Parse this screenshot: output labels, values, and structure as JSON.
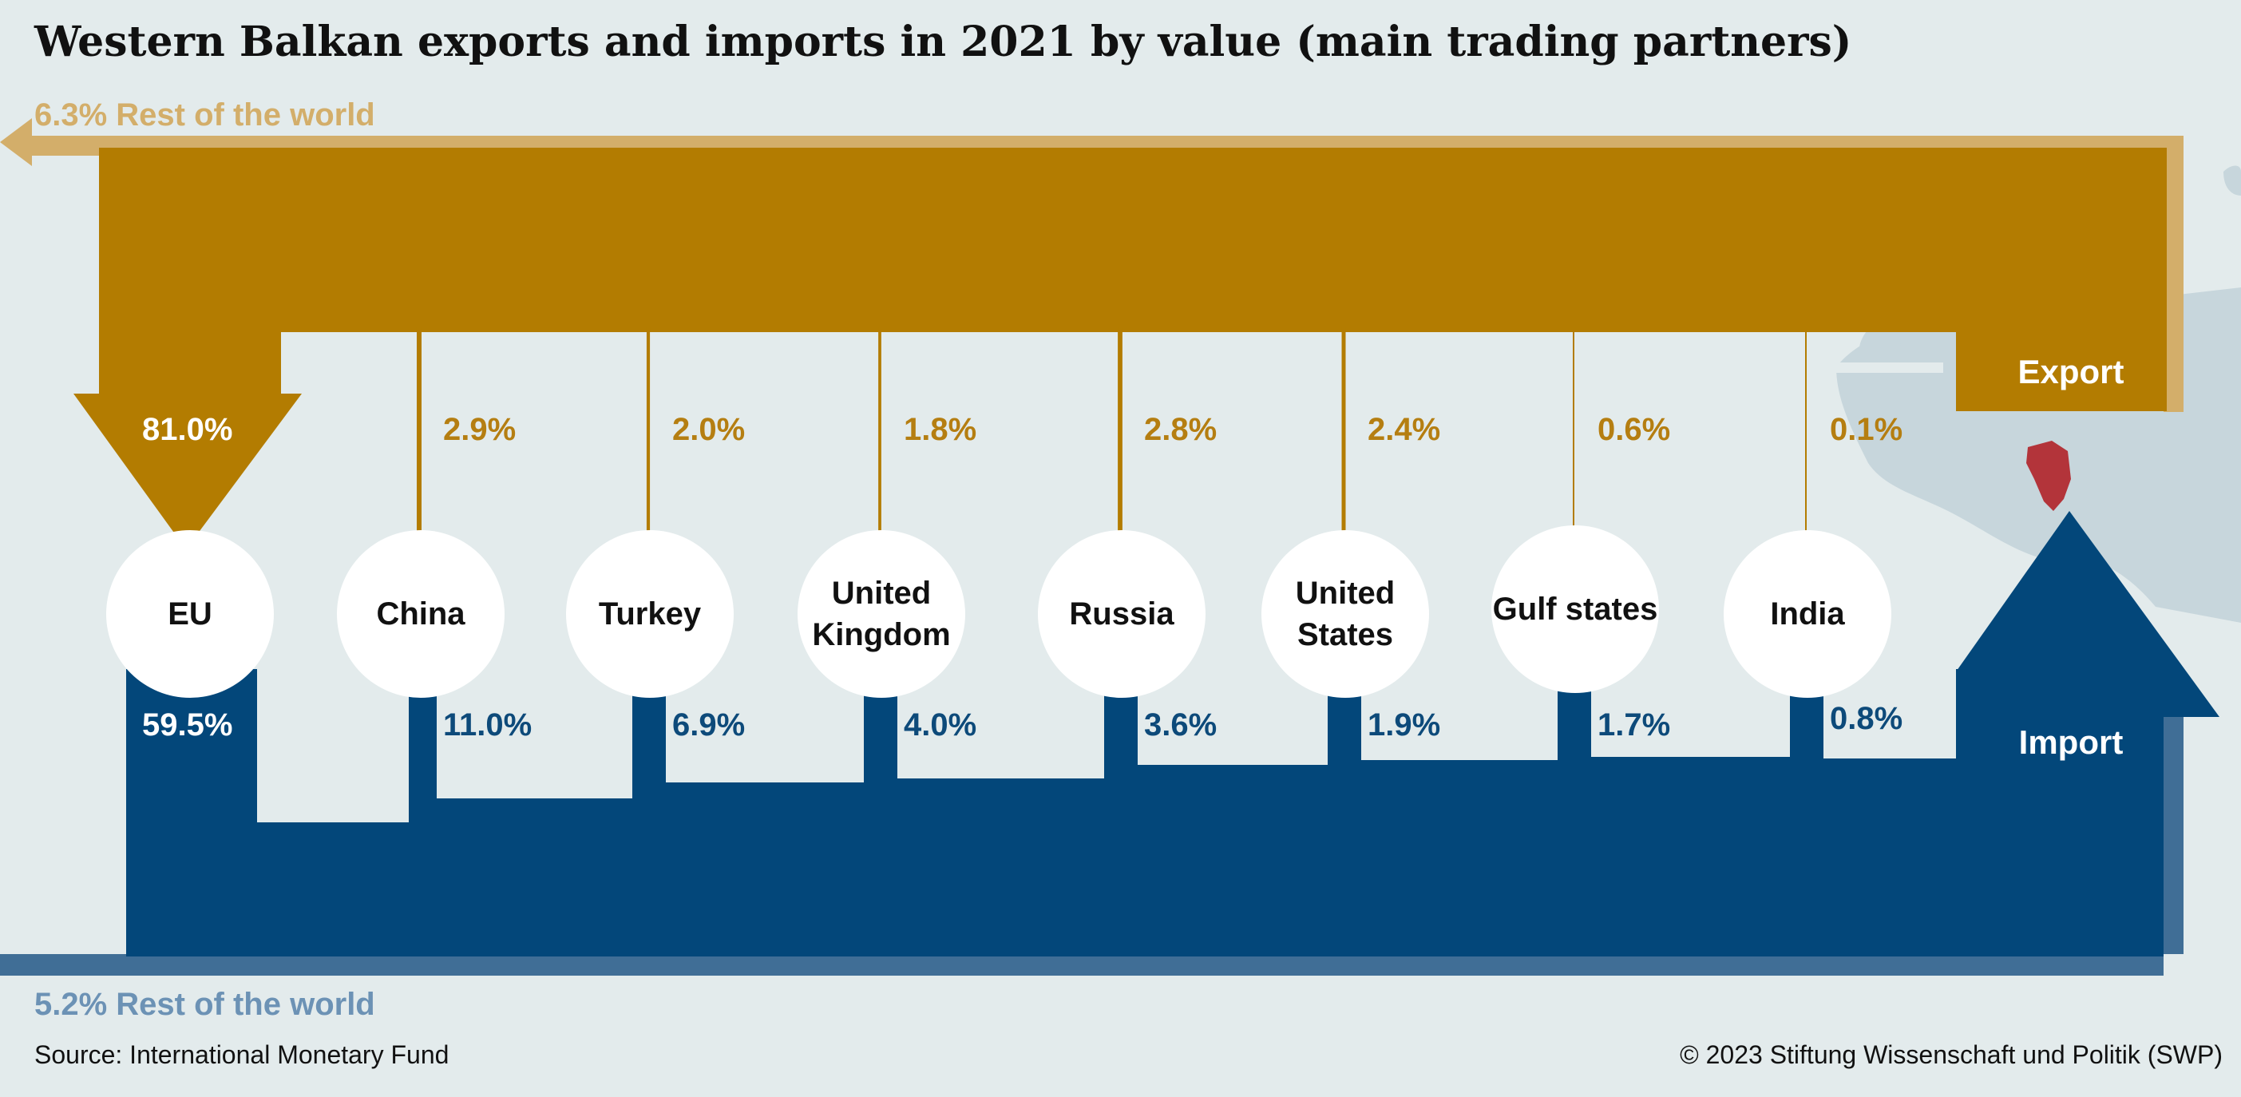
{
  "title": "Western Balkan exports and imports in 2021 by value (main trading partners)",
  "export_label": "Export",
  "import_label": "Import",
  "rest_of_world_export": "6.3% Rest of the world",
  "rest_of_world_import": "5.2% Rest of the world",
  "source": "Source: International Monetary Fund",
  "copyright": "© 2023 Stiftung Wissenschaft und Politik (SWP)",
  "colors": {
    "export": "#b37c01",
    "export_light": "#d3ae6a",
    "import": "#03477a",
    "import_light": "#406e96",
    "background": "#e3ebec",
    "map": "#c7d6dc",
    "western_balkans": "#b3343a"
  },
  "partners": [
    {
      "name": "EU",
      "export": "81.0%",
      "import": "59.5%"
    },
    {
      "name": "China",
      "export": "2.9%",
      "import": "11.0%"
    },
    {
      "name": "Turkey",
      "export": "2.0%",
      "import": "6.9%"
    },
    {
      "name": "United\nKingdom",
      "export": "1.8%",
      "import": "4.0%"
    },
    {
      "name": "Russia",
      "export": "2.8%",
      "import": "3.6%"
    },
    {
      "name": "United\nStates",
      "export": "2.4%",
      "import": "1.9%"
    },
    {
      "name": "Gulf states",
      "export": "0.6%",
      "import": "1.7%"
    },
    {
      "name": "India",
      "export": "0.1%",
      "import": "0.8%"
    }
  ],
  "chart_data": {
    "type": "flow",
    "categories": [
      "EU",
      "China",
      "Turkey",
      "United Kingdom",
      "Russia",
      "United States",
      "Gulf states",
      "India",
      "Rest of the world"
    ],
    "series": [
      {
        "name": "Export",
        "values": [
          81.0,
          2.9,
          2.0,
          1.8,
          2.8,
          2.4,
          0.6,
          0.1,
          6.3
        ]
      },
      {
        "name": "Import",
        "values": [
          59.5,
          11.0,
          6.9,
          4.0,
          3.6,
          1.9,
          1.7,
          0.8,
          5.2
        ]
      }
    ]
  }
}
